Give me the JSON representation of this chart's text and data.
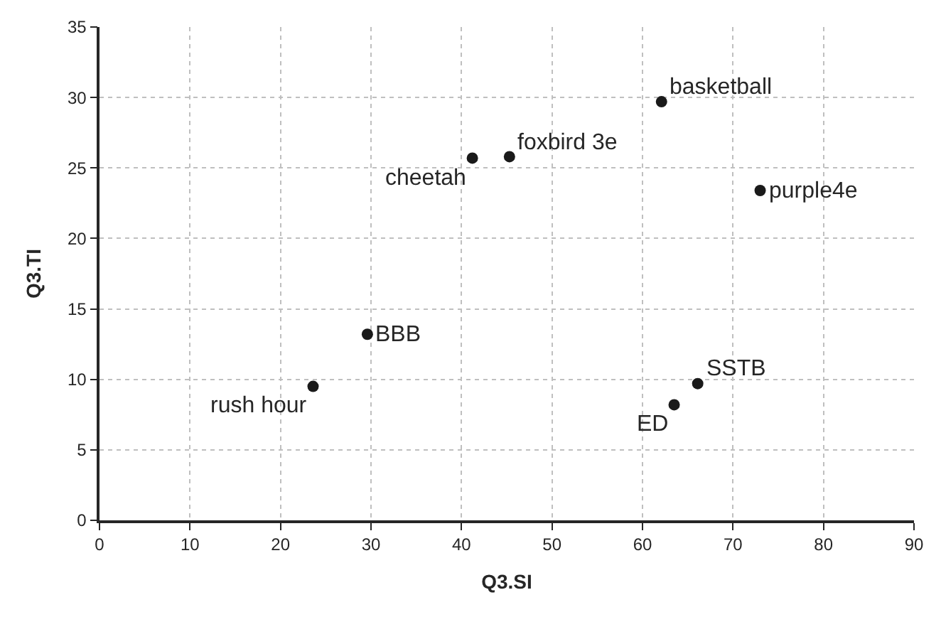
{
  "chart_data": {
    "type": "scatter",
    "xlabel": "Q3.SI",
    "ylabel": "Q3.TI",
    "x": [
      23.6,
      29.6,
      41.2,
      45.3,
      62.1,
      73.0,
      66.1,
      63.5
    ],
    "series": [
      {
        "color": "#1a1a1a",
        "values": [
          9.5,
          13.2,
          25.7,
          25.8,
          29.7,
          23.4,
          9.7,
          8.2
        ]
      }
    ],
    "annotations": [
      {
        "text": "rush hour",
        "x": 23.6,
        "y": 9.5
      },
      {
        "text": "BBB",
        "x": 29.6,
        "y": 13.2
      },
      {
        "text": "cheetah",
        "x": 41.2,
        "y": 25.7
      },
      {
        "text": "foxbird 3e",
        "x": 45.3,
        "y": 25.8
      },
      {
        "text": "basketball",
        "x": 62.1,
        "y": 29.7
      },
      {
        "text": "purple4e",
        "x": 73.0,
        "y": 23.4
      },
      {
        "text": "SSTB",
        "x": 66.1,
        "y": 9.7
      },
      {
        "text": "ED",
        "x": 63.5,
        "y": 8.2
      }
    ],
    "xlim": [
      0,
      90
    ],
    "xticks": [
      0,
      10,
      20,
      30,
      40,
      50,
      60,
      70,
      80,
      90
    ],
    "ylim": [
      0,
      35
    ],
    "yticks": [
      0,
      5,
      10,
      15,
      20,
      25,
      30,
      35
    ],
    "grid": true,
    "legend": false,
    "marker": "circle"
  }
}
